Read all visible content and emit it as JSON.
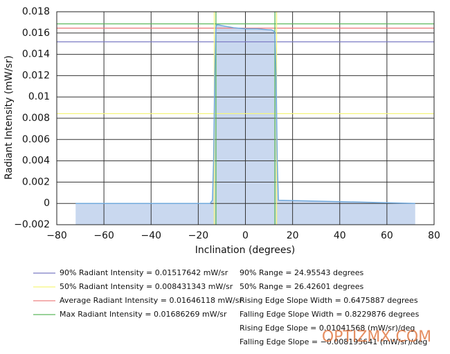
{
  "chart_data": {
    "type": "line",
    "xlabel": "Inclination (degrees)",
    "ylabel": "Radiant Intensity (mW/sr)",
    "xlim": [
      -80,
      80
    ],
    "ylim": [
      -0.002,
      0.018
    ],
    "xticks": [
      {
        "value": -80,
        "label": "−80"
      },
      {
        "value": -60,
        "label": "−60"
      },
      {
        "value": -40,
        "label": "−40"
      },
      {
        "value": -20,
        "label": "−20"
      },
      0,
      20,
      40,
      60,
      80
    ],
    "yticks": [
      {
        "value": -0.002,
        "label": "−0.002"
      },
      0,
      0.002,
      0.004,
      0.006,
      0.008,
      0.01,
      0.012,
      0.014,
      0.016,
      0.018
    ],
    "grid": true,
    "x": [
      -72,
      -15,
      -14,
      -13.5,
      -13,
      -12.5,
      -12,
      -10,
      -5,
      0,
      5,
      10,
      11,
      12,
      12.5,
      13,
      13.5,
      14,
      72
    ],
    "series": [
      {
        "color": "#6fa8dc",
        "values": [
          0,
          0,
          0.0003,
          0.004,
          0.012,
          0.0166,
          0.0168,
          0.0167,
          0.0165,
          0.0164,
          0.0164,
          0.0163,
          0.0163,
          0.0162,
          0.016,
          0.012,
          0.004,
          0.0003,
          0
        ]
      }
    ],
    "reference_lines": [
      {
        "name": "90% Radiant Intensity = 0.01517642 mW/sr",
        "color": "#7b7bc4",
        "value": 0.01517642
      },
      {
        "name": "50% Radiant Intensity = 0.008431343 mW/sr",
        "color": "#f5f57a",
        "value": 0.008431343
      },
      {
        "name": "Average Radiant Intensity = 0.01646118 mW/sr",
        "color": "#ee8080",
        "value": 0.01646118
      },
      {
        "name": "Max Radiant Intensity = 0.01686269 mW/sr",
        "color": "#5cb85c",
        "value": 0.01686269
      }
    ],
    "vertical_lines": [
      {
        "color": "#f5f57a",
        "x": -13.2
      },
      {
        "color": "#5cb85c",
        "x": -12.5
      },
      {
        "color": "#5cb85c",
        "x": 12.5
      },
      {
        "color": "#f5f57a",
        "x": 13.2
      }
    ],
    "annotations": [
      "90% Range = 24.95543 degrees",
      "50% Range = 26.42601 degrees",
      "Rising Edge Slope Width = 0.6475887 degrees",
      "Falling Edge Slope Width = 0.8229876 degrees",
      "Rising Edge Slope = 0.01041568 (mW/sr)/deg",
      "Falling Edge Slope = −0.008195641 (mW/sr)/deg"
    ],
    "watermark": "OPTIZMX.COM"
  }
}
